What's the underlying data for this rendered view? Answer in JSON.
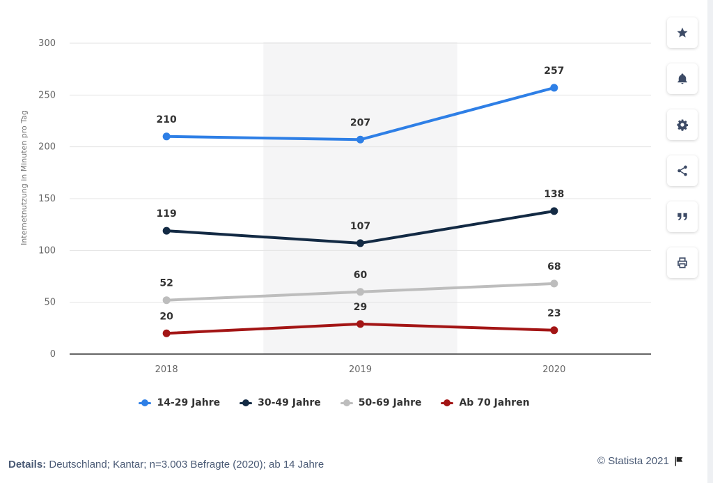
{
  "chart_data": {
    "type": "line",
    "categories": [
      "2018",
      "2019",
      "2020"
    ],
    "series": [
      {
        "name": "14-29 Jahre",
        "color": "#2e7fe6",
        "values": [
          210,
          207,
          257
        ]
      },
      {
        "name": "30-49 Jahre",
        "color": "#132a44",
        "values": [
          119,
          107,
          138
        ]
      },
      {
        "name": "50-69 Jahre",
        "color": "#bdbdbd",
        "values": [
          52,
          60,
          68
        ]
      },
      {
        "name": "Ab 70 Jahren",
        "color": "#a31515",
        "values": [
          20,
          29,
          23
        ]
      }
    ],
    "ylabel": "Internetnutzung in Minuten pro Tag",
    "ylim": [
      0,
      300
    ],
    "yticks": [
      0,
      50,
      100,
      150,
      200,
      250,
      300
    ],
    "highlight_category": "2019",
    "legend_position": "bottom"
  },
  "toolbar": {
    "icons": [
      "star-icon",
      "bell-icon",
      "gear-icon",
      "share-icon",
      "quote-icon",
      "print-icon"
    ]
  },
  "footer": {
    "details_label": "Details:",
    "details_text": " Deutschland; Kantar; n=3.003 Befragte (2020); ab 14 Jahre",
    "copyright": "© Statista 2021"
  }
}
